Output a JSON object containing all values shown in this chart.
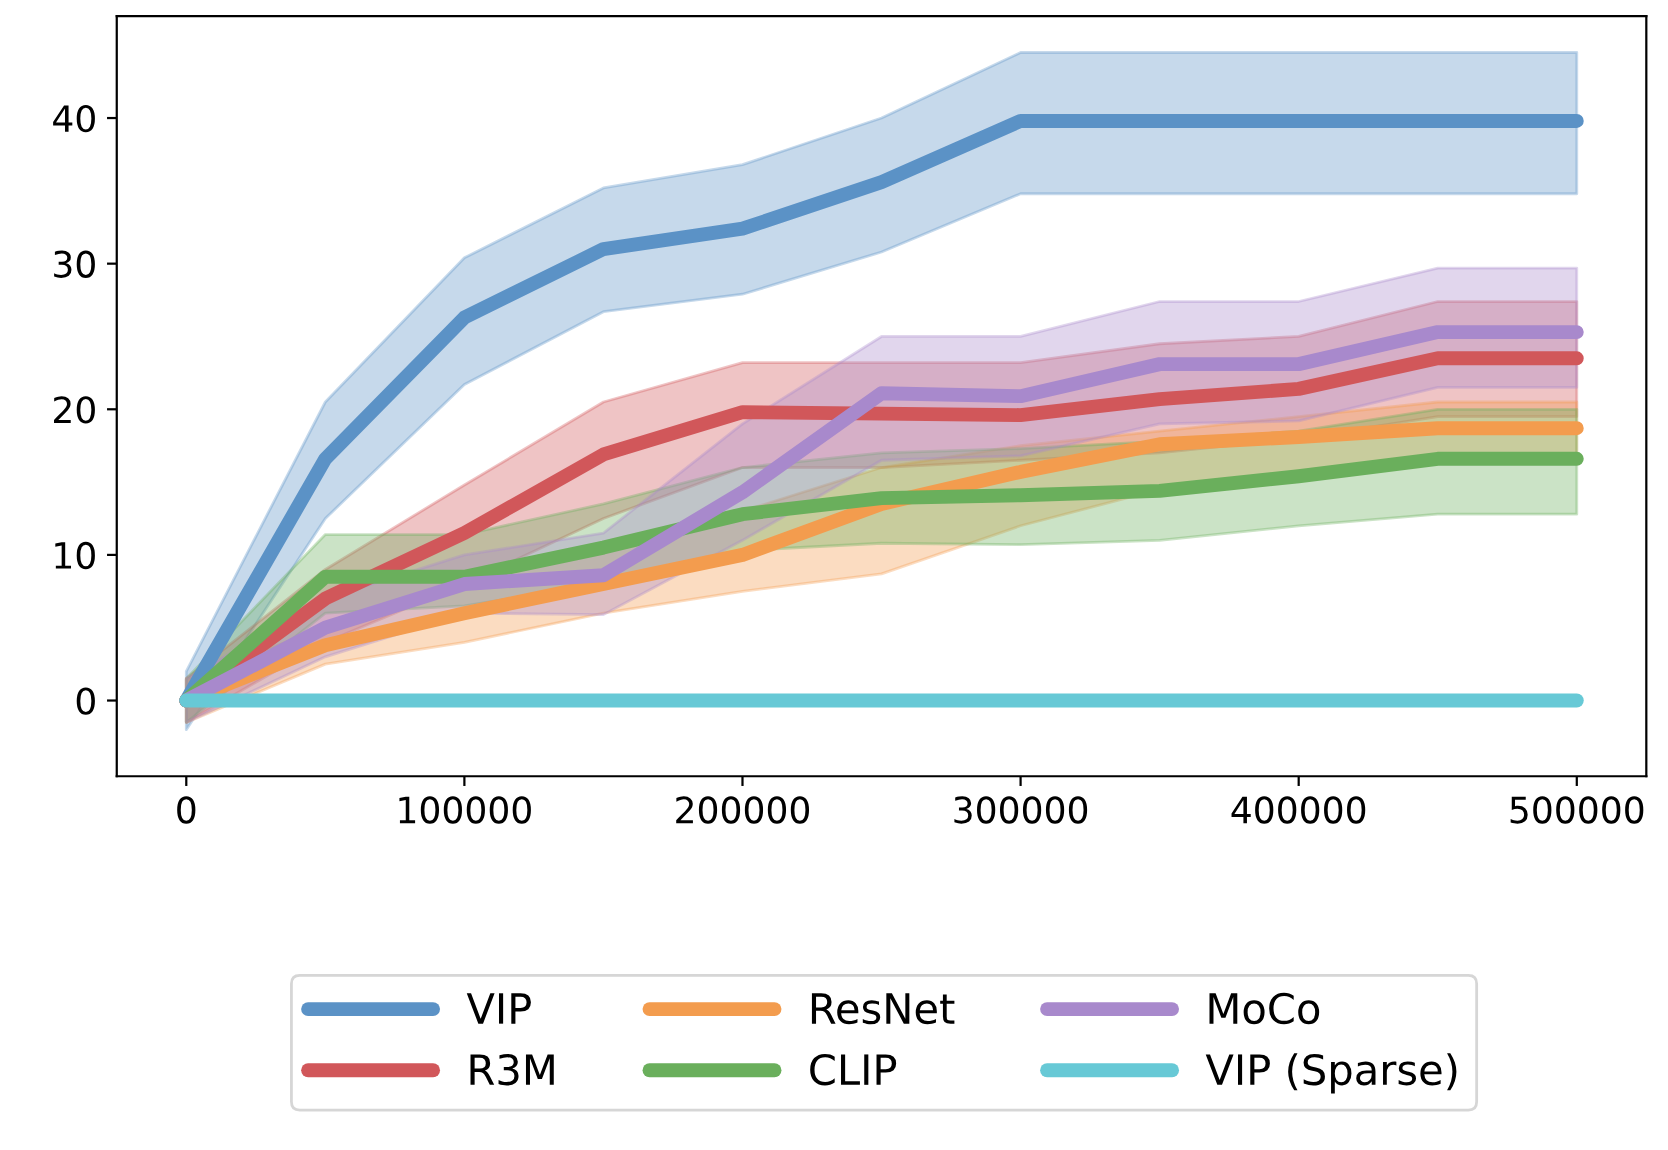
{
  "chart_data": {
    "type": "line",
    "x": [
      0,
      50000,
      100000,
      150000,
      200000,
      250000,
      300000,
      350000,
      400000,
      450000,
      500000
    ],
    "xlim": [
      -25000,
      525000
    ],
    "xticks": [
      0,
      100000,
      200000,
      300000,
      400000,
      500000
    ],
    "ylim": [
      -5.2,
      47
    ],
    "yticks": [
      0,
      10,
      20,
      30,
      40
    ],
    "grid": false,
    "legend": "bottom",
    "series": [
      {
        "name": "VIP",
        "color": "#5b92c6",
        "values": [
          0,
          16.6,
          26.3,
          31,
          32.4,
          35.6,
          39.8,
          39.8,
          39.8,
          39.8,
          39.8
        ],
        "lower": [
          -2,
          12.5,
          21.7,
          26.7,
          27.9,
          30.8,
          34.8,
          34.8,
          34.8,
          34.8,
          34.8
        ],
        "upper": [
          2,
          20.5,
          30.4,
          35.2,
          36.8,
          40,
          44.5,
          44.5,
          44.5,
          44.5,
          44.5
        ]
      },
      {
        "name": "R3M",
        "color": "#d1575a",
        "values": [
          0,
          7,
          11.5,
          16.9,
          19.8,
          19.7,
          19.6,
          20.7,
          21.4,
          23.5,
          23.5
        ],
        "lower": [
          -1.5,
          4,
          8,
          12.5,
          16,
          16,
          16.5,
          17,
          18,
          19.5,
          19.5
        ],
        "upper": [
          1.5,
          9,
          14.8,
          20.5,
          23.2,
          23.2,
          23.2,
          24.5,
          25,
          27.4,
          27.4
        ]
      },
      {
        "name": "ResNet",
        "color": "#f39c4e",
        "values": [
          0,
          3.8,
          6,
          8,
          10,
          13.5,
          15.7,
          17.6,
          18.1,
          18.7,
          18.7
        ],
        "lower": [
          -1.5,
          2.5,
          4,
          6,
          7.5,
          8.7,
          12,
          14.5,
          15.5,
          16.5,
          16.5
        ],
        "upper": [
          1.5,
          5,
          8,
          10.5,
          13,
          16,
          17.5,
          18.5,
          19.5,
          20.5,
          20.5
        ]
      },
      {
        "name": "CLIP",
        "color": "#6aaf5c",
        "values": [
          0,
          8.5,
          8.5,
          10.5,
          12.8,
          13.9,
          14.1,
          14.4,
          15.4,
          16.6,
          16.6
        ],
        "lower": [
          -1.5,
          6,
          6.5,
          8,
          10.3,
          10.8,
          10.7,
          11,
          12,
          12.8,
          12.8
        ],
        "upper": [
          1.5,
          11.4,
          11.4,
          13.5,
          16,
          17,
          17.3,
          17.8,
          18.5,
          20,
          20
        ]
      },
      {
        "name": "MoCo",
        "color": "#a889cc",
        "values": [
          0,
          5,
          8,
          8.6,
          14.3,
          21.1,
          20.9,
          23.1,
          23.1,
          25.3,
          25.3
        ],
        "lower": [
          -1.5,
          3,
          6,
          5.9,
          11,
          16.5,
          16.8,
          19,
          19.2,
          21.5,
          21.5
        ],
        "upper": [
          1.5,
          7,
          10,
          11.5,
          19,
          25,
          25,
          27.4,
          27.4,
          29.7,
          29.7
        ]
      },
      {
        "name": "VIP (Sparse)",
        "color": "#67c9d6",
        "values": [
          0,
          0,
          0,
          0,
          0,
          0,
          0,
          0,
          0,
          0,
          0
        ]
      }
    ]
  }
}
